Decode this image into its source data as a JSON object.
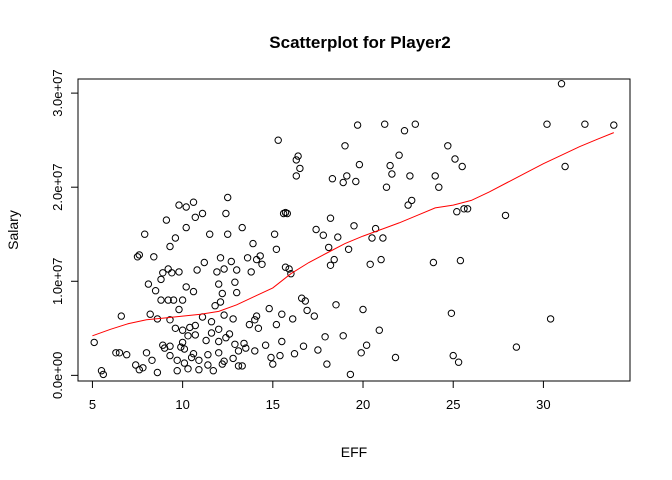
{
  "chart_data": {
    "type": "scatter",
    "title": "Scatterplot for Player2",
    "xlabel": "EFF",
    "ylabel": "Salary",
    "xlim": [
      4.2,
      34.8
    ],
    "ylim": [
      -600000,
      31500000
    ],
    "x_ticks": [
      5,
      10,
      15,
      20,
      25,
      30
    ],
    "x_tick_labels": [
      "5",
      "10",
      "15",
      "20",
      "25",
      "30"
    ],
    "y_ticks": [
      0,
      10000000,
      20000000,
      30000000
    ],
    "y_tick_labels": [
      "0.0e+00",
      "1.0e+07",
      "2.0e+07",
      "3.0e+07"
    ],
    "grid": false,
    "point_color": "#000000",
    "line_color": "#ff0000",
    "points": [
      [
        5.1,
        3500000
      ],
      [
        5.5,
        500000
      ],
      [
        5.6,
        100000
      ],
      [
        6.3,
        2400000
      ],
      [
        6.5,
        2400000
      ],
      [
        6.6,
        6300000
      ],
      [
        6.9,
        2200000
      ],
      [
        7.4,
        1100000
      ],
      [
        7.5,
        12600000
      ],
      [
        7.6,
        12800000
      ],
      [
        7.6,
        600000
      ],
      [
        7.8,
        800000
      ],
      [
        7.9,
        15000000
      ],
      [
        8.0,
        2400000
      ],
      [
        8.1,
        9700000
      ],
      [
        8.2,
        6500000
      ],
      [
        8.3,
        1600000
      ],
      [
        8.4,
        12600000
      ],
      [
        8.5,
        9000000
      ],
      [
        8.6,
        6000000
      ],
      [
        8.6,
        300000
      ],
      [
        8.8,
        8000000
      ],
      [
        8.8,
        10200000
      ],
      [
        8.9,
        10900000
      ],
      [
        8.9,
        3200000
      ],
      [
        9.0,
        2900000
      ],
      [
        9.1,
        16500000
      ],
      [
        9.2,
        11300000
      ],
      [
        9.2,
        8000000
      ],
      [
        9.3,
        13700000
      ],
      [
        9.3,
        5900000
      ],
      [
        9.3,
        3100000
      ],
      [
        9.3,
        2100000
      ],
      [
        9.4,
        10900000
      ],
      [
        9.5,
        8000000
      ],
      [
        9.6,
        14600000
      ],
      [
        9.6,
        5000000
      ],
      [
        9.7,
        1600000
      ],
      [
        9.7,
        500000
      ],
      [
        9.8,
        18100000
      ],
      [
        9.8,
        11000000
      ],
      [
        9.8,
        7000000
      ],
      [
        9.9,
        3000000
      ],
      [
        10.0,
        8000000
      ],
      [
        10.0,
        4800000
      ],
      [
        10.0,
        3500000
      ],
      [
        10.1,
        2800000
      ],
      [
        10.1,
        1300000
      ],
      [
        10.2,
        17900000
      ],
      [
        10.2,
        15700000
      ],
      [
        10.2,
        9400000
      ],
      [
        10.3,
        4200000
      ],
      [
        10.3,
        700000
      ],
      [
        10.4,
        5100000
      ],
      [
        10.5,
        1900000
      ],
      [
        10.6,
        18400000
      ],
      [
        10.6,
        8900000
      ],
      [
        10.6,
        2300000
      ],
      [
        10.7,
        16800000
      ],
      [
        10.7,
        5300000
      ],
      [
        10.7,
        4300000
      ],
      [
        10.8,
        11200000
      ],
      [
        10.9,
        1600000
      ],
      [
        10.9,
        600000
      ],
      [
        11.1,
        17200000
      ],
      [
        11.1,
        6200000
      ],
      [
        11.2,
        12000000
      ],
      [
        11.3,
        3700000
      ],
      [
        11.4,
        2200000
      ],
      [
        11.4,
        1100000
      ],
      [
        11.5,
        15000000
      ],
      [
        11.6,
        5700000
      ],
      [
        11.6,
        4500000
      ],
      [
        11.7,
        500000
      ],
      [
        11.8,
        7400000
      ],
      [
        11.9,
        11000000
      ],
      [
        12.0,
        9700000
      ],
      [
        12.0,
        4900000
      ],
      [
        12.0,
        3600000
      ],
      [
        12.0,
        2400000
      ],
      [
        12.1,
        12500000
      ],
      [
        12.1,
        7800000
      ],
      [
        12.2,
        8700000
      ],
      [
        12.2,
        1200000
      ],
      [
        12.3,
        11300000
      ],
      [
        12.3,
        6400000
      ],
      [
        12.3,
        1500000
      ],
      [
        12.4,
        17200000
      ],
      [
        12.4,
        4000000
      ],
      [
        12.5,
        18900000
      ],
      [
        12.5,
        15000000
      ],
      [
        12.6,
        4400000
      ],
      [
        12.7,
        12100000
      ],
      [
        12.8,
        6000000
      ],
      [
        12.8,
        1800000
      ],
      [
        12.9,
        9900000
      ],
      [
        12.9,
        3300000
      ],
      [
        13.0,
        11200000
      ],
      [
        13.0,
        8800000
      ],
      [
        13.1,
        2600000
      ],
      [
        13.1,
        1000000
      ],
      [
        13.3,
        15700000
      ],
      [
        13.3,
        1000000
      ],
      [
        13.4,
        3400000
      ],
      [
        13.5,
        2900000
      ],
      [
        13.6,
        12500000
      ],
      [
        13.7,
        5400000
      ],
      [
        13.8,
        11000000
      ],
      [
        13.9,
        14000000
      ],
      [
        14.0,
        5900000
      ],
      [
        14.0,
        2600000
      ],
      [
        14.1,
        6300000
      ],
      [
        14.1,
        12300000
      ],
      [
        14.2,
        5000000
      ],
      [
        14.3,
        12700000
      ],
      [
        14.4,
        11800000
      ],
      [
        14.6,
        3200000
      ],
      [
        14.8,
        7100000
      ],
      [
        14.9,
        1900000
      ],
      [
        15.0,
        1200000
      ],
      [
        15.1,
        15000000
      ],
      [
        15.2,
        13400000
      ],
      [
        15.2,
        5400000
      ],
      [
        15.3,
        25000000
      ],
      [
        15.4,
        2100000
      ],
      [
        15.5,
        6500000
      ],
      [
        15.5,
        3600000
      ],
      [
        15.6,
        17200000
      ],
      [
        15.7,
        17300000
      ],
      [
        15.7,
        11500000
      ],
      [
        15.8,
        17200000
      ],
      [
        15.9,
        11300000
      ],
      [
        16.0,
        10800000
      ],
      [
        16.1,
        6000000
      ],
      [
        16.2,
        2300000
      ],
      [
        16.3,
        22900000
      ],
      [
        16.3,
        21200000
      ],
      [
        16.4,
        23300000
      ],
      [
        16.5,
        22000000
      ],
      [
        16.6,
        8200000
      ],
      [
        16.7,
        3100000
      ],
      [
        16.8,
        7900000
      ],
      [
        16.9,
        6900000
      ],
      [
        17.3,
        6300000
      ],
      [
        17.4,
        15500000
      ],
      [
        17.5,
        2700000
      ],
      [
        17.8,
        14900000
      ],
      [
        17.9,
        4100000
      ],
      [
        18.0,
        1200000
      ],
      [
        18.1,
        13600000
      ],
      [
        18.2,
        11700000
      ],
      [
        18.2,
        16700000
      ],
      [
        18.3,
        20900000
      ],
      [
        18.4,
        12300000
      ],
      [
        18.5,
        7500000
      ],
      [
        18.6,
        14700000
      ],
      [
        18.9,
        20500000
      ],
      [
        18.9,
        4200000
      ],
      [
        19.0,
        24400000
      ],
      [
        19.1,
        21200000
      ],
      [
        19.2,
        13400000
      ],
      [
        19.3,
        100000
      ],
      [
        19.5,
        15900000
      ],
      [
        19.6,
        20600000
      ],
      [
        19.7,
        26600000
      ],
      [
        19.8,
        22400000
      ],
      [
        19.9,
        2400000
      ],
      [
        20.0,
        7000000
      ],
      [
        20.2,
        3200000
      ],
      [
        20.4,
        11800000
      ],
      [
        20.5,
        14600000
      ],
      [
        20.7,
        15600000
      ],
      [
        20.9,
        4800000
      ],
      [
        21.0,
        12300000
      ],
      [
        21.1,
        14600000
      ],
      [
        21.2,
        26700000
      ],
      [
        21.3,
        20000000
      ],
      [
        21.5,
        22300000
      ],
      [
        21.6,
        21400000
      ],
      [
        21.8,
        1900000
      ],
      [
        22.0,
        23400000
      ],
      [
        22.3,
        26000000
      ],
      [
        22.5,
        18100000
      ],
      [
        22.6,
        21200000
      ],
      [
        22.7,
        18600000
      ],
      [
        22.9,
        26700000
      ],
      [
        23.9,
        12000000
      ],
      [
        24.0,
        21200000
      ],
      [
        24.2,
        20000000
      ],
      [
        24.7,
        24400000
      ],
      [
        24.9,
        6600000
      ],
      [
        25.0,
        2100000
      ],
      [
        25.1,
        23000000
      ],
      [
        25.2,
        17400000
      ],
      [
        25.3,
        1400000
      ],
      [
        25.4,
        12200000
      ],
      [
        25.5,
        22200000
      ],
      [
        25.6,
        17700000
      ],
      [
        25.8,
        17700000
      ],
      [
        27.9,
        17000000
      ],
      [
        28.5,
        3000000
      ],
      [
        30.2,
        26700000
      ],
      [
        30.4,
        6000000
      ],
      [
        31.0,
        31000000
      ],
      [
        31.2,
        22200000
      ],
      [
        32.3,
        26700000
      ],
      [
        33.9,
        26600000
      ]
    ],
    "smooth_line": [
      [
        5.0,
        4200000
      ],
      [
        6.0,
        4900000
      ],
      [
        7.0,
        5500000
      ],
      [
        8.0,
        5900000
      ],
      [
        9.0,
        6100000
      ],
      [
        10.0,
        6300000
      ],
      [
        11.0,
        6500000
      ],
      [
        12.0,
        6800000
      ],
      [
        13.0,
        7500000
      ],
      [
        14.0,
        8400000
      ],
      [
        15.0,
        9300000
      ],
      [
        16.0,
        10800000
      ],
      [
        17.0,
        12000000
      ],
      [
        18.0,
        13000000
      ],
      [
        19.0,
        14000000
      ],
      [
        20.0,
        14800000
      ],
      [
        21.0,
        15500000
      ],
      [
        22.0,
        16200000
      ],
      [
        23.0,
        17000000
      ],
      [
        24.0,
        17800000
      ],
      [
        25.0,
        18100000
      ],
      [
        26.0,
        18600000
      ],
      [
        27.0,
        19500000
      ],
      [
        28.0,
        20500000
      ],
      [
        29.0,
        21500000
      ],
      [
        30.0,
        22500000
      ],
      [
        31.0,
        23400000
      ],
      [
        32.0,
        24300000
      ],
      [
        33.0,
        25100000
      ],
      [
        33.9,
        25800000
      ]
    ]
  }
}
